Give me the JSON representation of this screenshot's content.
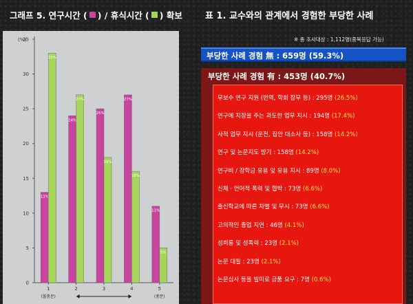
{
  "chart": {
    "title_prefix": "그래프 5. 연구시간 (",
    "title_mid": ") / 휴식시간 (",
    "title_suffix": ") 확보",
    "ylabel": "(%)"
  },
  "chart_data": {
    "type": "bar",
    "title": "그래프 5. 연구시간 ( ) / 휴식시간 ( ) 확보",
    "ylabel": "(%)",
    "ylim": [
      0,
      35
    ],
    "yticks": [
      0,
      5,
      10,
      15,
      20,
      25,
      30,
      35
    ],
    "categories": [
      "1",
      "2",
      "3",
      "4",
      "5"
    ],
    "category_sublabels": [
      "(불충분)",
      "",
      "",
      "",
      "(충분)"
    ],
    "series": [
      {
        "name": "연구시간",
        "color": "#c8449f",
        "values": [
          13,
          24,
          25,
          27,
          11
        ],
        "labels": [
          "13%",
          "24%",
          "25%",
          "27%",
          "11%"
        ]
      },
      {
        "name": "휴식시간",
        "color": "#a5d65a",
        "values": [
          33,
          27,
          18,
          16,
          5
        ],
        "labels": [
          "33%",
          "27%",
          "18%",
          "16%",
          "5%"
        ]
      }
    ],
    "grid": false,
    "legend": "title"
  },
  "table": {
    "title": "표 1. 교수와의 관계에서 경험한 부당한 사례",
    "note": "※ 총 조사대상 : 1,112명(중복응답 가능)",
    "none_label": "부당한 사례 경험 無 : 659명 (59.3%)",
    "has_label": "부당한 사례 경험 有 : 453명 (40.7%)",
    "items": [
      {
        "text": "무보수 연구 지원 (번역, 학회 잡무 등) : 295명",
        "pct": "(26.5%)"
      },
      {
        "text": "연구에 지장을 주는 과도한 업무 지시 : 194명",
        "pct": "(17.4%)"
      },
      {
        "text": "사적 업무 지시 (운전, 집안 대소사 등) : 158명",
        "pct": "(14.2%)"
      },
      {
        "text": "연구 및 논문지도 방기 : 158명",
        "pct": "(14.2%)"
      },
      {
        "text": "연구비 / 장학금 유용 및 유용 지시 : 89명",
        "pct": "(8.0%)"
      },
      {
        "text": "신체 · 언어적 폭력 및 협박 : 73명",
        "pct": "(6.6%)"
      },
      {
        "text": "출신학교에 따른 차별 및 무시 : 73명",
        "pct": "(6.6%)"
      },
      {
        "text": "고의적인 졸업 지연 : 46명",
        "pct": "(4.1%)"
      },
      {
        "text": "성희롱 및 성폭력 : 23명",
        "pct": "(2.1%)"
      },
      {
        "text": "논문 대필 : 23명",
        "pct": "(2.1%)"
      },
      {
        "text": "논문심사 등을 빌미로 금품 요구 : 7명",
        "pct": "(0.6%)"
      }
    ]
  }
}
